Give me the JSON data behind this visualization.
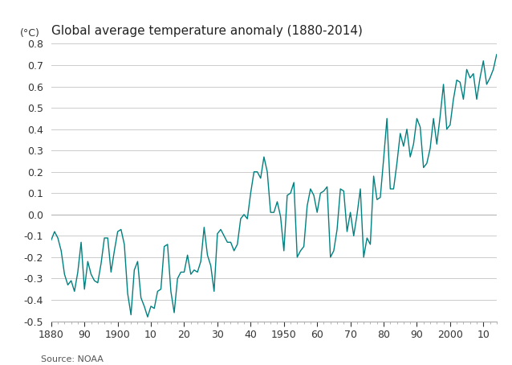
{
  "title": "Global average temperature anomaly (1880-2014)",
  "ylabel": "(°C)",
  "source": "Source: NOAA",
  "line_color": "#008080",
  "bg_color": "#ffffff",
  "grid_color": "#cccccc",
  "zero_line_color": "#bbbbbb",
  "ylim": [
    -0.5,
    0.8
  ],
  "yticks": [
    -0.5,
    -0.4,
    -0.3,
    -0.2,
    -0.1,
    0.0,
    0.1,
    0.2,
    0.3,
    0.4,
    0.5,
    0.6,
    0.7,
    0.8
  ],
  "xlim": [
    1880,
    2014
  ],
  "xtick_positions": [
    1880,
    1890,
    1900,
    1910,
    1920,
    1930,
    1940,
    1950,
    1960,
    1970,
    1980,
    1990,
    2000,
    2010
  ],
  "xtick_labels": [
    "1880",
    "90",
    "1900",
    "10",
    "20",
    "30",
    "40",
    "1950",
    "60",
    "70",
    "80",
    "90",
    "2000",
    "10"
  ],
  "years": [
    1880,
    1881,
    1882,
    1883,
    1884,
    1885,
    1886,
    1887,
    1888,
    1889,
    1890,
    1891,
    1892,
    1893,
    1894,
    1895,
    1896,
    1897,
    1898,
    1899,
    1900,
    1901,
    1902,
    1903,
    1904,
    1905,
    1906,
    1907,
    1908,
    1909,
    1910,
    1911,
    1912,
    1913,
    1914,
    1915,
    1916,
    1917,
    1918,
    1919,
    1920,
    1921,
    1922,
    1923,
    1924,
    1925,
    1926,
    1927,
    1928,
    1929,
    1930,
    1931,
    1932,
    1933,
    1934,
    1935,
    1936,
    1937,
    1938,
    1939,
    1940,
    1941,
    1942,
    1943,
    1944,
    1945,
    1946,
    1947,
    1948,
    1949,
    1950,
    1951,
    1952,
    1953,
    1954,
    1955,
    1956,
    1957,
    1958,
    1959,
    1960,
    1961,
    1962,
    1963,
    1964,
    1965,
    1966,
    1967,
    1968,
    1969,
    1970,
    1971,
    1972,
    1973,
    1974,
    1975,
    1976,
    1977,
    1978,
    1979,
    1980,
    1981,
    1982,
    1983,
    1984,
    1985,
    1986,
    1987,
    1988,
    1989,
    1990,
    1991,
    1992,
    1993,
    1994,
    1995,
    1996,
    1997,
    1998,
    1999,
    2000,
    2001,
    2002,
    2003,
    2004,
    2005,
    2006,
    2007,
    2008,
    2009,
    2010,
    2011,
    2012,
    2013,
    2014
  ],
  "anomalies": [
    -0.12,
    -0.08,
    -0.11,
    -0.17,
    -0.28,
    -0.33,
    -0.31,
    -0.36,
    -0.27,
    -0.13,
    -0.35,
    -0.22,
    -0.28,
    -0.31,
    -0.32,
    -0.23,
    -0.11,
    -0.11,
    -0.27,
    -0.17,
    -0.08,
    -0.07,
    -0.14,
    -0.37,
    -0.47,
    -0.26,
    -0.22,
    -0.39,
    -0.43,
    -0.48,
    -0.43,
    -0.44,
    -0.36,
    -0.35,
    -0.15,
    -0.14,
    -0.36,
    -0.46,
    -0.3,
    -0.27,
    -0.27,
    -0.19,
    -0.28,
    -0.26,
    -0.27,
    -0.22,
    -0.06,
    -0.19,
    -0.24,
    -0.36,
    -0.09,
    -0.07,
    -0.1,
    -0.13,
    -0.13,
    -0.17,
    -0.14,
    -0.02,
    -0.0,
    -0.02,
    0.1,
    0.2,
    0.2,
    0.17,
    0.27,
    0.2,
    0.01,
    0.01,
    0.06,
    -0.01,
    -0.17,
    0.09,
    0.1,
    0.15,
    -0.2,
    -0.17,
    -0.15,
    0.04,
    0.12,
    0.09,
    0.01,
    0.1,
    0.11,
    0.13,
    -0.2,
    -0.17,
    -0.07,
    0.12,
    0.11,
    -0.08,
    0.01,
    -0.1,
    0.0,
    0.12,
    -0.2,
    -0.11,
    -0.14,
    0.18,
    0.07,
    0.08,
    0.26,
    0.45,
    0.12,
    0.12,
    0.24,
    0.38,
    0.32,
    0.4,
    0.27,
    0.33,
    0.45,
    0.41,
    0.22,
    0.24,
    0.31,
    0.45,
    0.33,
    0.46,
    0.61,
    0.4,
    0.42,
    0.54,
    0.63,
    0.62,
    0.54,
    0.68,
    0.64,
    0.66,
    0.54,
    0.64,
    0.72,
    0.61,
    0.64,
    0.68,
    0.75
  ],
  "title_fontsize": 11,
  "tick_fontsize": 9,
  "source_fontsize": 8,
  "ylabel_fontsize": 9,
  "line_width": 1.0
}
